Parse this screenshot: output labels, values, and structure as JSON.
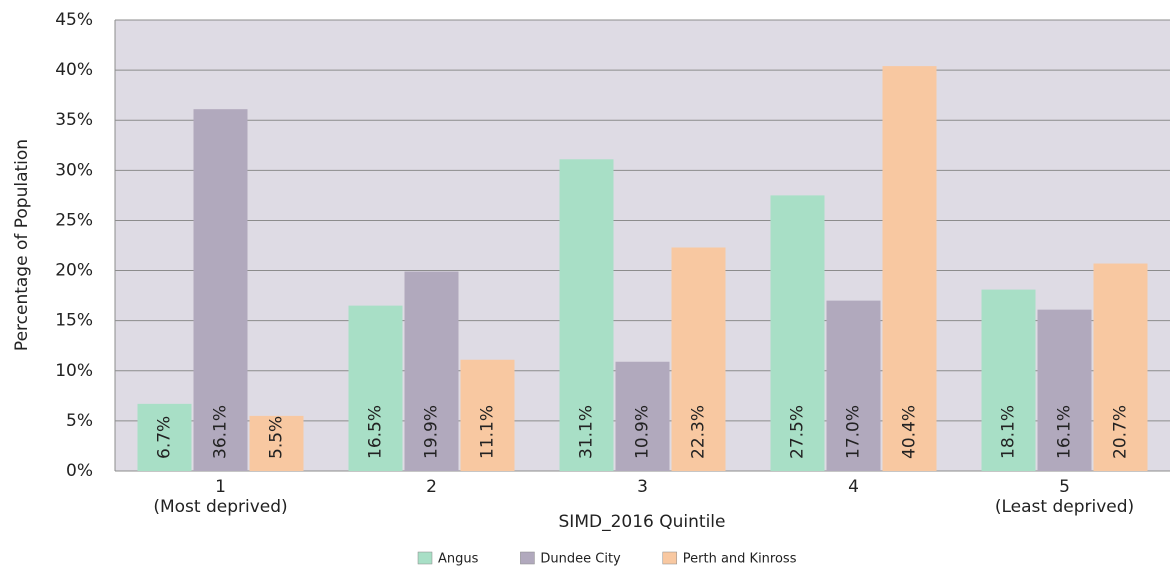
{
  "chart_data": {
    "type": "bar",
    "y_axis_label": "Percentage of Population",
    "x_axis_label": "SIMD_2016 Quintile",
    "categories": [
      "1",
      "2",
      "3",
      "4",
      "5"
    ],
    "category_sublabels": [
      "(Most deprived)",
      null,
      null,
      null,
      "(Least deprived)"
    ],
    "series": [
      {
        "name": "Angus",
        "color": "#a8dfc6",
        "values": [
          6.7,
          16.5,
          31.1,
          27.5,
          18.1
        ],
        "value_labels": [
          "6.7%",
          "16.5%",
          "31.1%",
          "27.5%",
          "18.1%"
        ]
      },
      {
        "name": "Dundee City",
        "color": "#b1a9bd",
        "values": [
          36.1,
          19.9,
          10.9,
          17.0,
          16.1
        ],
        "value_labels": [
          "36.1%",
          "19.9%",
          "10.9%",
          "17.0%",
          "16.1%"
        ]
      },
      {
        "name": "Perth and Kinross",
        "color": "#f8c8a1",
        "values": [
          5.5,
          11.1,
          22.3,
          40.4,
          20.7
        ],
        "value_labels": [
          "5.5%",
          "11.1%",
          "22.3%",
          "40.4%",
          "20.7%"
        ]
      }
    ],
    "ylim": [
      0,
      45
    ],
    "yticks": [
      {
        "value": 0,
        "label": "0%"
      },
      {
        "value": 5,
        "label": "5%"
      },
      {
        "value": 10,
        "label": "10%"
      },
      {
        "value": 15,
        "label": "15%"
      },
      {
        "value": 20,
        "label": "20%"
      },
      {
        "value": 25,
        "label": "25%"
      },
      {
        "value": 30,
        "label": "30%"
      },
      {
        "value": 35,
        "label": "35%"
      },
      {
        "value": 40,
        "label": "40%"
      },
      {
        "value": 45,
        "label": "45%"
      }
    ],
    "grid": true,
    "legend": "bottom"
  }
}
